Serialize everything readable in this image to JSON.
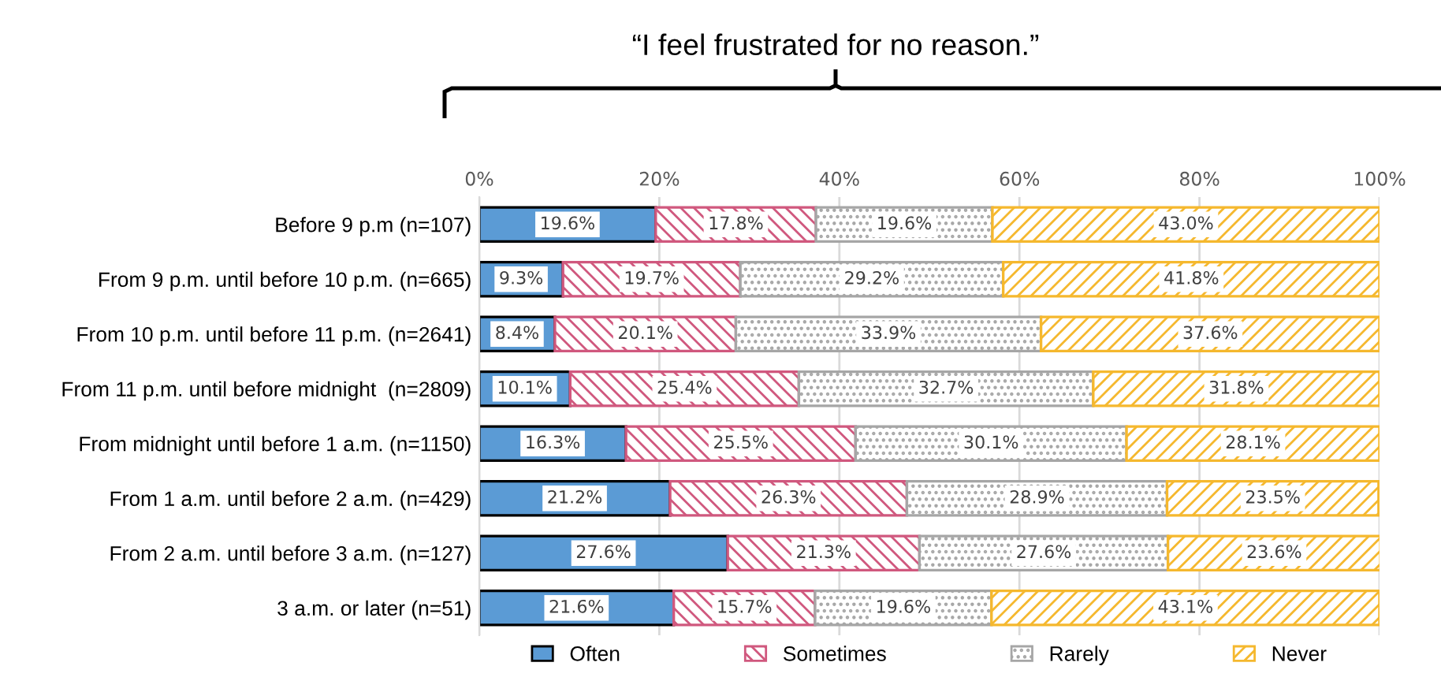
{
  "chart_data": {
    "type": "bar",
    "orientation": "horizontal",
    "stacked": true,
    "title": "“I feel frustrated for no reason.”",
    "categories": [
      "Before 9 p.m (n=107)",
      "From 9 p.m. until before 10 p.m. (n=665)",
      "From 10 p.m. until before 11 p.m. (n=2641)",
      "From 11 p.m. until before midnight  (n=2809)",
      "From midnight until before 1 a.m. (n=1150)",
      "From 1 a.m. until before 2 a.m. (n=429)",
      "From 2 a.m. until before 3 a.m. (n=127)",
      "3 a.m. or later (n=51)"
    ],
    "series": [
      {
        "name": "Often",
        "color": "#5b9bd5",
        "values": [
          19.6,
          9.3,
          8.4,
          10.1,
          16.3,
          21.2,
          27.6,
          21.6
        ],
        "value_labels": [
          "19.6%",
          "9.3%",
          "8.4%",
          "10.1%",
          "16.3%",
          "21.2%",
          "27.6%",
          "21.6%"
        ]
      },
      {
        "name": "Sometimes",
        "color": "#d0587e",
        "values": [
          17.8,
          19.7,
          20.1,
          25.4,
          25.5,
          26.3,
          21.3,
          15.7
        ],
        "value_labels": [
          "17.8%",
          "19.7%",
          "20.1%",
          "25.4%",
          "25.5%",
          "26.3%",
          "21.3%",
          "15.7%"
        ]
      },
      {
        "name": "Rarely",
        "color": "#a6a6a6",
        "values": [
          19.6,
          29.2,
          33.9,
          32.7,
          30.1,
          28.9,
          27.6,
          19.6
        ],
        "value_labels": [
          "19.6%",
          "29.2%",
          "33.9%",
          "32.7%",
          "30.1%",
          "28.9%",
          "27.6%",
          "19.6%"
        ]
      },
      {
        "name": "Never",
        "color": "#f5b82e",
        "values": [
          43.0,
          41.8,
          37.6,
          31.8,
          28.1,
          23.5,
          23.6,
          43.1
        ],
        "value_labels": [
          "43.0%",
          "41.8%",
          "37.6%",
          "31.8%",
          "28.1%",
          "23.5%",
          "23.6%",
          "43.1%"
        ]
      }
    ],
    "xlim": [
      0,
      100
    ],
    "xticks": [
      {
        "value": 0,
        "label": "0%"
      },
      {
        "value": 20,
        "label": "20%"
      },
      {
        "value": 40,
        "label": "40%"
      },
      {
        "value": 60,
        "label": "60%"
      },
      {
        "value": 80,
        "label": "80%"
      },
      {
        "value": 100,
        "label": "100%"
      }
    ],
    "grid": "x",
    "legend": "bottom"
  }
}
